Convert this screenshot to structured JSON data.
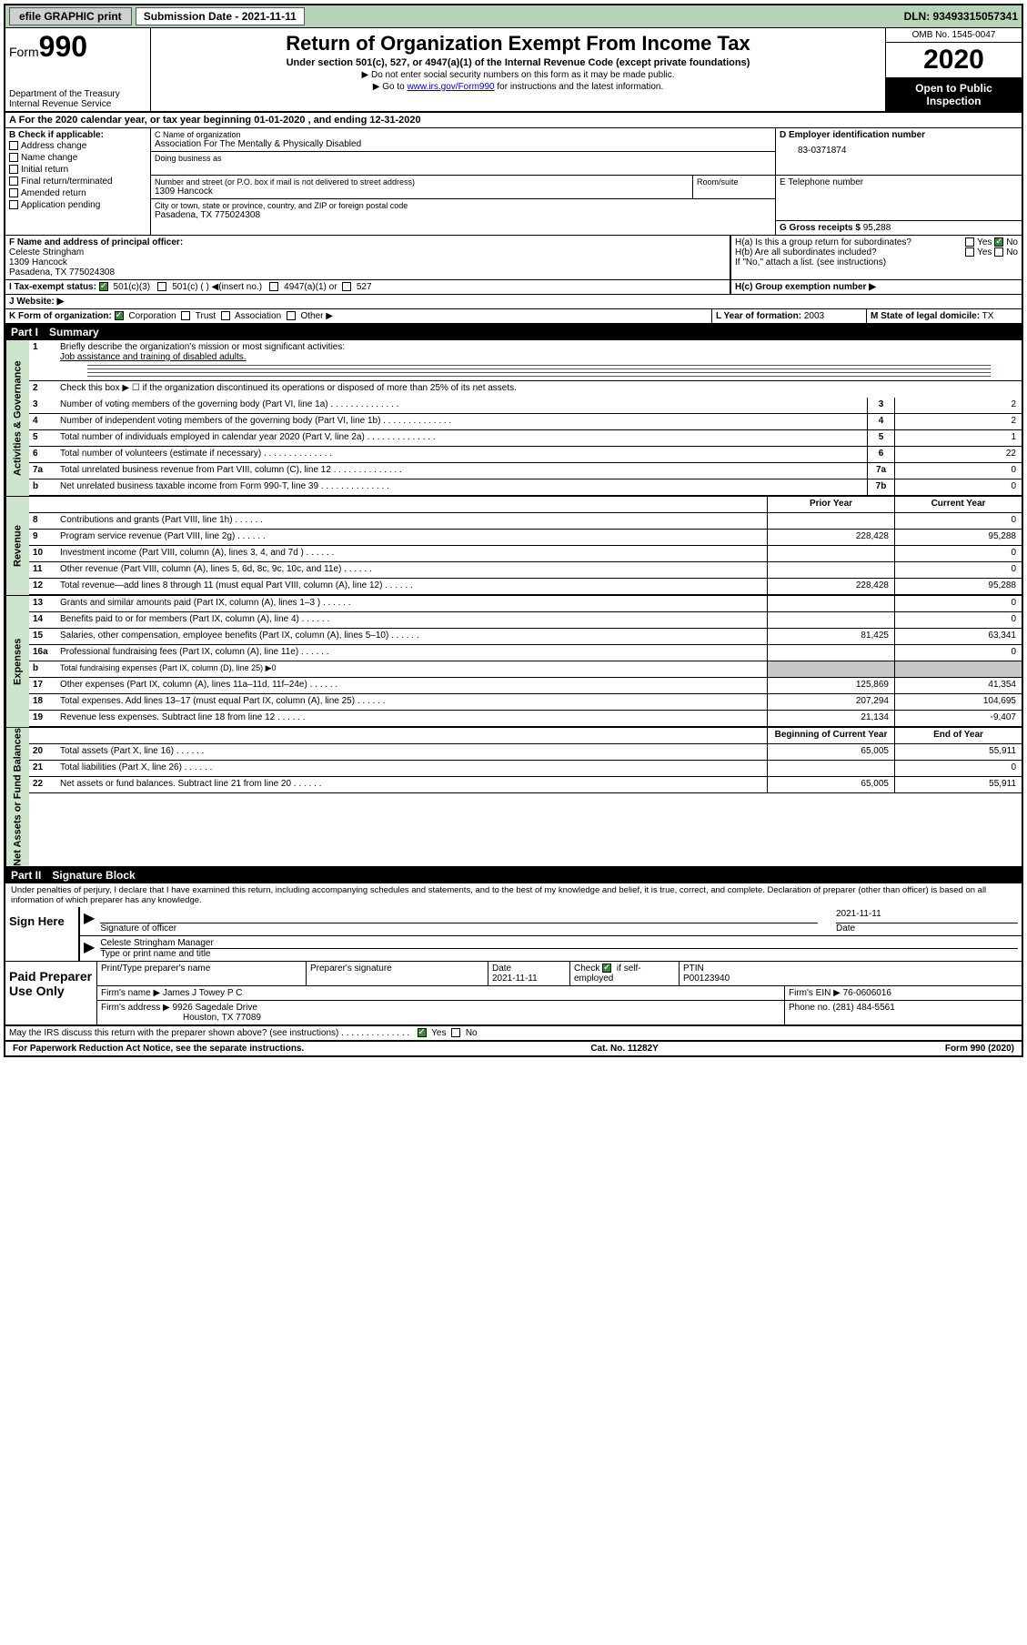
{
  "topbar": {
    "efile": "efile GRAPHIC print",
    "submission_label": "Submission Date - 2021-11-11",
    "dln": "DLN: 93493315057341"
  },
  "header": {
    "form_label": "Form",
    "form_num": "990",
    "dept": "Department of the Treasury",
    "irs": "Internal Revenue Service",
    "title": "Return of Organization Exempt From Income Tax",
    "subtitle": "Under section 501(c), 527, or 4947(a)(1) of the Internal Revenue Code (except private foundations)",
    "note1": "▶ Do not enter social security numbers on this form as it may be made public.",
    "note2_pre": "▶ Go to ",
    "note2_link": "www.irs.gov/Form990",
    "note2_post": " for instructions and the latest information.",
    "omb": "OMB No. 1545-0047",
    "year": "2020",
    "open": "Open to Public Inspection"
  },
  "period": "For the 2020 calendar year, or tax year beginning 01-01-2020    , and ending 12-31-2020",
  "checkB": {
    "label": "B Check if applicable:",
    "items": [
      "Address change",
      "Name change",
      "Initial return",
      "Final return/terminated",
      "Amended return",
      "Application pending"
    ]
  },
  "sectionC": {
    "name_label": "C Name of organization",
    "name": "Association For The Mentally & Physically Disabled",
    "dba_label": "Doing business as",
    "addr_label": "Number and street (or P.O. box if mail is not delivered to street address)",
    "room_label": "Room/suite",
    "addr": "1309 Hancock",
    "city_label": "City or town, state or province, country, and ZIP or foreign postal code",
    "city": "Pasadena, TX  775024308"
  },
  "sectionD": {
    "label": "D Employer identification number",
    "value": "83-0371874"
  },
  "sectionE": {
    "label": "E Telephone number",
    "value": ""
  },
  "sectionG": {
    "label": "G Gross receipts $",
    "value": "95,288"
  },
  "sectionF": {
    "label": "F  Name and address of principal officer:",
    "name": "Celeste Stringham",
    "addr1": "1309 Hancock",
    "addr2": "Pasadena, TX  775024308"
  },
  "sectionH": {
    "a": "H(a)  Is this a group return for subordinates?",
    "b": "H(b)  Are all subordinates included?",
    "note": "If \"No,\" attach a list. (see instructions)",
    "c": "H(c)  Group exemption number ▶",
    "yes": "Yes",
    "no": "No"
  },
  "sectionI": {
    "label": "I   Tax-exempt status:",
    "c3": "501(c)(3)",
    "c": "501(c) (  ) ◀(insert no.)",
    "a1": "4947(a)(1) or",
    "s527": "527"
  },
  "sectionJ": "J   Website: ▶",
  "sectionK": {
    "label": "K Form of organization:",
    "corp": "Corporation",
    "trust": "Trust",
    "assoc": "Association",
    "other": "Other ▶"
  },
  "sectionL": {
    "label": "L Year of formation:",
    "value": "2003"
  },
  "sectionM": {
    "label": "M State of legal domicile:",
    "value": "TX"
  },
  "part1": {
    "num": "Part I",
    "title": "Summary"
  },
  "summary": {
    "groups": [
      {
        "label": "Activities & Governance",
        "rows": [
          {
            "n": "1",
            "desc": "Briefly describe the organization's mission or most significant activities:",
            "answer": "Job assistance and training of disabled adults.",
            "type": "text"
          },
          {
            "n": "2",
            "desc": "Check this box ▶ ☐  if the organization discontinued its operations or disposed of more than 25% of its net assets.",
            "type": "note"
          },
          {
            "n": "3",
            "desc": "Number of voting members of the governing body (Part VI, line 1a)",
            "box": "3",
            "cur": "2"
          },
          {
            "n": "4",
            "desc": "Number of independent voting members of the governing body (Part VI, line 1b)",
            "box": "4",
            "cur": "2"
          },
          {
            "n": "5",
            "desc": "Total number of individuals employed in calendar year 2020 (Part V, line 2a)",
            "box": "5",
            "cur": "1"
          },
          {
            "n": "6",
            "desc": "Total number of volunteers (estimate if necessary)",
            "box": "6",
            "cur": "22"
          },
          {
            "n": "7a",
            "desc": "Total unrelated business revenue from Part VIII, column (C), line 12",
            "box": "7a",
            "cur": "0"
          },
          {
            "n": "b",
            "desc": "Net unrelated business taxable income from Form 990-T, line 39",
            "box": "7b",
            "cur": "0"
          }
        ]
      },
      {
        "label": "Revenue",
        "header": {
          "py": "Prior Year",
          "cy": "Current Year"
        },
        "rows": [
          {
            "n": "8",
            "desc": "Contributions and grants (Part VIII, line 1h)",
            "py": "",
            "cy": "0"
          },
          {
            "n": "9",
            "desc": "Program service revenue (Part VIII, line 2g)",
            "py": "228,428",
            "cy": "95,288"
          },
          {
            "n": "10",
            "desc": "Investment income (Part VIII, column (A), lines 3, 4, and 7d )",
            "py": "",
            "cy": "0"
          },
          {
            "n": "11",
            "desc": "Other revenue (Part VIII, column (A), lines 5, 6d, 8c, 9c, 10c, and 11e)",
            "py": "",
            "cy": "0"
          },
          {
            "n": "12",
            "desc": "Total revenue—add lines 8 through 11 (must equal Part VIII, column (A), line 12)",
            "py": "228,428",
            "cy": "95,288"
          }
        ]
      },
      {
        "label": "Expenses",
        "rows": [
          {
            "n": "13",
            "desc": "Grants and similar amounts paid (Part IX, column (A), lines 1–3 )",
            "py": "",
            "cy": "0"
          },
          {
            "n": "14",
            "desc": "Benefits paid to or for members (Part IX, column (A), line 4)",
            "py": "",
            "cy": "0"
          },
          {
            "n": "15",
            "desc": "Salaries, other compensation, employee benefits (Part IX, column (A), lines 5–10)",
            "py": "81,425",
            "cy": "63,341"
          },
          {
            "n": "16a",
            "desc": "Professional fundraising fees (Part IX, column (A), line 11e)",
            "py": "",
            "cy": "0"
          },
          {
            "n": "b",
            "desc": "Total fundraising expenses (Part IX, column (D), line 25) ▶0",
            "type": "sub",
            "grey": true
          },
          {
            "n": "17",
            "desc": "Other expenses (Part IX, column (A), lines 11a–11d, 11f–24e)",
            "py": "125,869",
            "cy": "41,354"
          },
          {
            "n": "18",
            "desc": "Total expenses. Add lines 13–17 (must equal Part IX, column (A), line 25)",
            "py": "207,294",
            "cy": "104,695"
          },
          {
            "n": "19",
            "desc": "Revenue less expenses. Subtract line 18 from line 12",
            "py": "21,134",
            "cy": "-9,407"
          }
        ]
      },
      {
        "label": "Net Assets or Fund Balances",
        "header": {
          "py": "Beginning of Current Year",
          "cy": "End of Year"
        },
        "rows": [
          {
            "n": "20",
            "desc": "Total assets (Part X, line 16)",
            "py": "65,005",
            "cy": "55,911"
          },
          {
            "n": "21",
            "desc": "Total liabilities (Part X, line 26)",
            "py": "",
            "cy": "0"
          },
          {
            "n": "22",
            "desc": "Net assets or fund balances. Subtract line 21 from line 20",
            "py": "65,005",
            "cy": "55,911"
          }
        ]
      }
    ]
  },
  "part2": {
    "num": "Part II",
    "title": "Signature Block"
  },
  "declare": "Under penalties of perjury, I declare that I have examined this return, including accompanying schedules and statements, and to the best of my knowledge and belief, it is true, correct, and complete. Declaration of preparer (other than officer) is based on all information of which preparer has any knowledge.",
  "sign": {
    "here": "Sign Here",
    "sig_officer": "Signature of officer",
    "date": "2021-11-11",
    "date_label": "Date",
    "name": "Celeste Stringham Manager",
    "name_label": "Type or print name and title"
  },
  "prep": {
    "label": "Paid Preparer Use Only",
    "print_label": "Print/Type preparer's name",
    "sig_label": "Preparer's signature",
    "date_label": "Date",
    "date": "2021-11-11",
    "check_label": "Check",
    "check_suffix": "if self-employed",
    "ptin_label": "PTIN",
    "ptin": "P00123940",
    "firm_name_label": "Firm's name     ▶",
    "firm_name": "James J Towey P C",
    "firm_ein_label": "Firm's EIN ▶",
    "firm_ein": "76-0606016",
    "firm_addr_label": "Firm's address ▶",
    "firm_addr1": "9926 Sagedale Drive",
    "firm_addr2": "Houston, TX  77089",
    "phone_label": "Phone no.",
    "phone": "(281) 484-5561"
  },
  "discuss": "May the IRS discuss this return with the preparer shown above? (see instructions)",
  "footer": {
    "pra": "For Paperwork Reduction Act Notice, see the separate instructions.",
    "cat": "Cat. No. 11282Y",
    "formyr": "Form 990 (2020)"
  },
  "colors": {
    "greenbg": "#b8d4b8",
    "vertbg": "#cde5cd",
    "link": "#0000cc",
    "grey": "#c8c8c8"
  }
}
